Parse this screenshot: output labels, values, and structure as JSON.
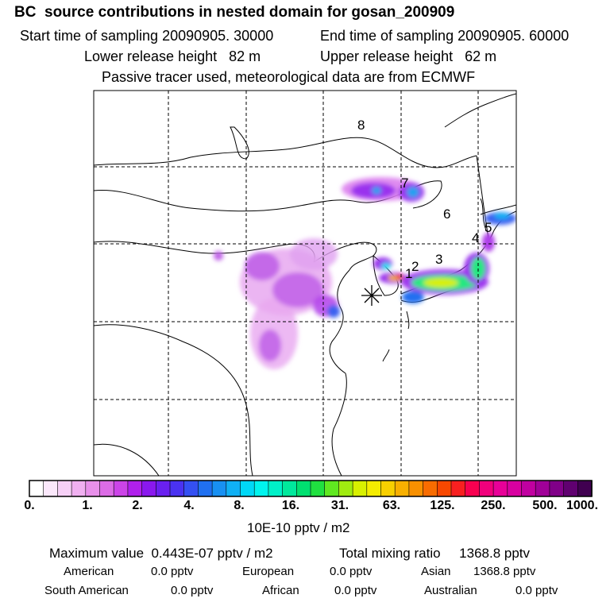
{
  "header": {
    "title": "BC  source contributions in nested domain for gosan_200909",
    "start_time": "Start time of sampling 20090905. 30000",
    "end_time": "End time of sampling 20090905. 60000",
    "lower_release": "Lower release height   82 m",
    "upper_release": "Upper release height   62 m",
    "tracer_note": "Passive tracer used, meteorological data are from ECMWF"
  },
  "map": {
    "region_labels": [
      "1",
      "2",
      "3",
      "4",
      "5",
      "6",
      "7",
      "8"
    ],
    "receptor_marker": "star-icon",
    "grid": true
  },
  "colorbar": {
    "ticks": [
      "0.",
      "1.",
      "2.",
      "4.",
      "8.",
      "16.",
      "31.",
      "63.",
      "125.",
      "250.",
      "500.",
      "1000."
    ],
    "unit": "10E-10 pptv / m2",
    "colors": [
      "#ffffff",
      "#fbe8fb",
      "#f6d0f6",
      "#f0b0f0",
      "#e890ea",
      "#dc6ce6",
      "#cc44e8",
      "#b020ec",
      "#8a18ee",
      "#6a20f0",
      "#4a32f0",
      "#3450f2",
      "#2070f0",
      "#1890f2",
      "#10b0f4",
      "#00d8f6",
      "#00f4ee",
      "#00f0c8",
      "#00e89c",
      "#00e070",
      "#20e040",
      "#60e820",
      "#a0ec10",
      "#d8f000",
      "#f4ec00",
      "#f8d000",
      "#f8b000",
      "#f89000",
      "#f86c00",
      "#f84800",
      "#f82020",
      "#f80050",
      "#f0007c",
      "#e80098",
      "#d800a0",
      "#c000a0",
      "#a00098",
      "#800088",
      "#600070",
      "#400050"
    ]
  },
  "summary": {
    "max_value": "Maximum value  0.443E-07 pptv / m2",
    "total_mixing": "Total mixing ratio     1368.8 pptv",
    "american_label": "American",
    "american_value": "0.0 pptv",
    "european_label": "European",
    "european_value": "0.0 pptv",
    "asian_label": "Asian",
    "asian_value": "1368.8 pptv",
    "south_american_label": "South American",
    "south_american_value": "0.0 pptv",
    "african_label": "African",
    "african_value": "0.0 pptv",
    "australian_label": "Australian",
    "australian_value": "0.0 pptv"
  }
}
